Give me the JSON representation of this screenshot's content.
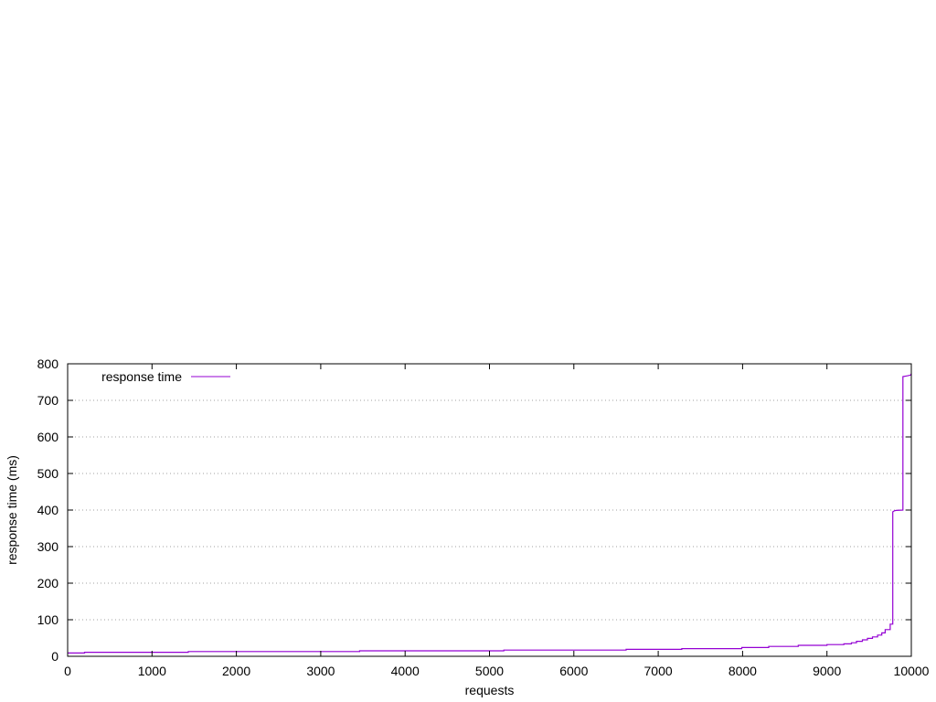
{
  "chart_data": {
    "type": "line",
    "title": "",
    "xlabel": "requests",
    "ylabel": "response time (ms)",
    "xlim": [
      0,
      10000
    ],
    "ylim": [
      0,
      800
    ],
    "x_ticks": [
      "0",
      "1000",
      "2000",
      "3000",
      "4000",
      "5000",
      "6000",
      "7000",
      "8000",
      "9000",
      "10000"
    ],
    "y_ticks": [
      "0",
      "100",
      "200",
      "300",
      "400",
      "500",
      "600",
      "700",
      "800"
    ],
    "grid": "horizontal dotted at y ticks",
    "legend_position": "top-left",
    "series": [
      {
        "name": "response time",
        "color": "#9400d3",
        "step": true,
        "points": [
          [
            0,
            9
          ],
          [
            200,
            9
          ],
          [
            200,
            11
          ],
          [
            1430,
            11
          ],
          [
            1430,
            13
          ],
          [
            3460,
            13
          ],
          [
            3460,
            15
          ],
          [
            5170,
            15
          ],
          [
            5170,
            17
          ],
          [
            6620,
            17
          ],
          [
            6620,
            19
          ],
          [
            7280,
            19
          ],
          [
            7280,
            21
          ],
          [
            7990,
            21
          ],
          [
            7990,
            24
          ],
          [
            8310,
            24
          ],
          [
            8310,
            27
          ],
          [
            8660,
            27
          ],
          [
            8660,
            30
          ],
          [
            9000,
            30
          ],
          [
            9000,
            32
          ],
          [
            9200,
            32
          ],
          [
            9200,
            34
          ],
          [
            9290,
            34
          ],
          [
            9290,
            37
          ],
          [
            9350,
            37
          ],
          [
            9350,
            41
          ],
          [
            9420,
            41
          ],
          [
            9420,
            45
          ],
          [
            9480,
            45
          ],
          [
            9480,
            49
          ],
          [
            9540,
            49
          ],
          [
            9540,
            53
          ],
          [
            9600,
            53
          ],
          [
            9600,
            58
          ],
          [
            9650,
            58
          ],
          [
            9650,
            64
          ],
          [
            9690,
            64
          ],
          [
            9690,
            73
          ],
          [
            9750,
            73
          ],
          [
            9750,
            88
          ],
          [
            9780,
            88
          ],
          [
            9780,
            395
          ],
          [
            9800,
            398
          ],
          [
            9820,
            399
          ],
          [
            9900,
            400
          ],
          [
            9900,
            765
          ],
          [
            9950,
            767
          ],
          [
            9990,
            769
          ],
          [
            10000,
            773
          ]
        ]
      }
    ]
  }
}
